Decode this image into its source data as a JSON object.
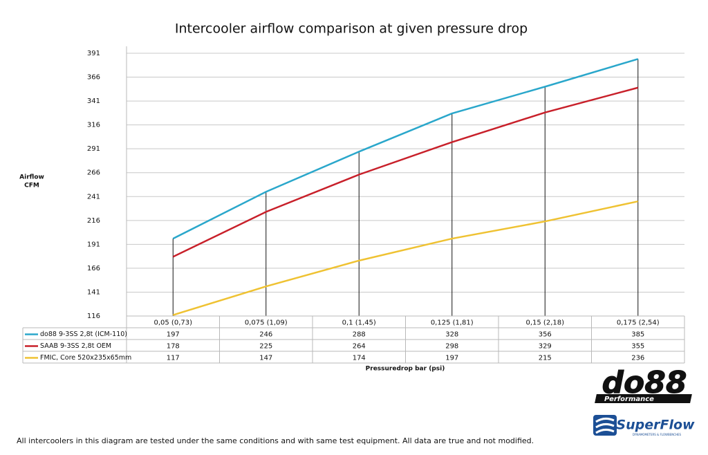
{
  "chart_data": {
    "type": "line",
    "title": "Intercooler airflow comparison at given pressure drop",
    "y_label_lines": [
      "Airflow",
      "CFM"
    ],
    "x_label": "Pressuredrop bar (psi)",
    "categories": [
      "0,05 (0,73)",
      "0,075 (1,09)",
      "0,1 (1,45)",
      "0,125 (1,81)",
      "0,15 (2,18)",
      "0,175 (2,54)"
    ],
    "series": [
      {
        "name": "do88 9-3SS 2,8t (ICM-110)",
        "color": "#2aa7cb",
        "values": [
          197,
          246,
          288,
          328,
          356,
          385
        ]
      },
      {
        "name": "SAAB 9-3SS 2,8t OEM",
        "color": "#c8202a",
        "values": [
          178,
          225,
          264,
          298,
          329,
          355
        ]
      },
      {
        "name": "FMIC, Core 520x235x65mm",
        "color": "#efc232",
        "values": [
          117,
          147,
          174,
          197,
          215,
          236
        ]
      }
    ],
    "ylim": [
      116,
      391
    ],
    "yticks": [
      116,
      141,
      166,
      191,
      216,
      241,
      266,
      291,
      316,
      341,
      366,
      391
    ],
    "grid": true,
    "data_table": true,
    "footnote": "All intercoolers in this diagram are tested under the same conditions and with same test equipment. All data are true and not modified.",
    "logos": {
      "do88": "do88",
      "do88_sub": "Performance",
      "superflow": "SuperFlow",
      "superflow_sub": "DYNAMOMETERS & FLOWBENCHES"
    }
  }
}
